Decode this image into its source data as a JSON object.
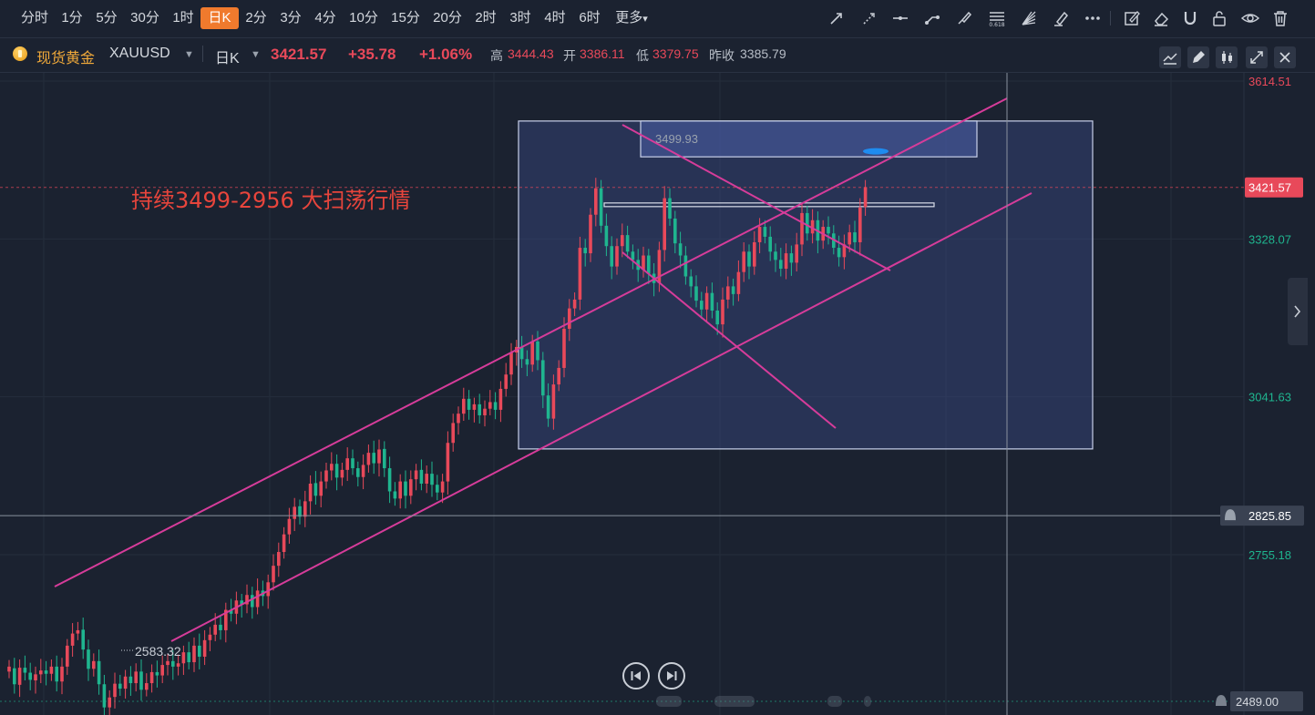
{
  "toolbar": {
    "timeframes": [
      "分时",
      "1分",
      "5分",
      "30分",
      "1时",
      "日K",
      "2分",
      "3分",
      "4分",
      "10分",
      "15分",
      "20分",
      "2时",
      "3时",
      "4时",
      "6时",
      "更多"
    ],
    "active_timeframe": "日K",
    "more_arrow": "▾",
    "tools": [
      "arrow-line-icon",
      "dashed-ray-icon",
      "horizontal-line-icon",
      "line-segment-icon",
      "brush-icon",
      "fibonacci-icon",
      "gann-fan-icon",
      "highlighter-icon",
      "more-dots-icon",
      "edit-note-icon",
      "eraser-icon",
      "magnet-icon",
      "lock-icon",
      "eye-icon",
      "trash-icon"
    ]
  },
  "symbol": {
    "name": "现货黄金",
    "code": "XAUUSD",
    "period": "日K",
    "price": "3421.57",
    "change": "+35.78",
    "change_pct": "+1.06%",
    "high_label": "高",
    "high": "3444.43",
    "open_label": "开",
    "open": "3386.11",
    "low_label": "低",
    "low": "3379.75",
    "prev_close_label": "昨收",
    "prev_close": "3385.79"
  },
  "info_buttons": [
    "indicator-icon",
    "pencil-icon",
    "candle-style-icon",
    "fullscreen-icon",
    "close-icon"
  ],
  "colors": {
    "up": "#e8495a",
    "down": "#1fb58f",
    "channel": "#d63c9a",
    "box_fill": "#3a4a82",
    "annotation": "#e8453c",
    "accent": "#f07a2d"
  },
  "chart_data": {
    "type": "candlestick",
    "title": "",
    "annotation": "持续3499-2956 大扫荡行情",
    "y_ticks": [
      "3614.51",
      "3328.07",
      "3041.63",
      "2755.18",
      "2489.00"
    ],
    "current_price_label": "3421.57",
    "crosshair_price_label": "2825.85",
    "range_high_label": "3499.93",
    "range_low_label": "2583.32",
    "ylim": [
      2489.0,
      3614.51
    ],
    "candles": [
      [
        2543,
        2552
      ],
      [
        2549,
        2520
      ],
      [
        2519,
        2550
      ],
      [
        2550,
        2541
      ],
      [
        2541,
        2528
      ],
      [
        2527,
        2538
      ],
      [
        2538,
        2545
      ],
      [
        2545,
        2539
      ],
      [
        2539,
        2552
      ],
      [
        2552,
        2525
      ],
      [
        2525,
        2552
      ],
      [
        2552,
        2590
      ],
      [
        2590,
        2612
      ],
      [
        2612,
        2618
      ],
      [
        2619,
        2583
      ],
      [
        2583,
        2548
      ],
      [
        2548,
        2562
      ],
      [
        2562,
        2520
      ],
      [
        2520,
        2478
      ],
      [
        2478,
        2496
      ],
      [
        2497,
        2521
      ],
      [
        2521,
        2512
      ],
      [
        2512,
        2534
      ],
      [
        2534,
        2522
      ],
      [
        2522,
        2543
      ],
      [
        2543,
        2510
      ],
      [
        2510,
        2522
      ],
      [
        2522,
        2542
      ],
      [
        2542,
        2536
      ],
      [
        2536,
        2555
      ],
      [
        2555,
        2562
      ],
      [
        2562,
        2552
      ],
      [
        2552,
        2558
      ],
      [
        2558,
        2578
      ],
      [
        2578,
        2560
      ],
      [
        2560,
        2590
      ],
      [
        2590,
        2570
      ],
      [
        2570,
        2600
      ],
      [
        2600,
        2610
      ],
      [
        2610,
        2628
      ],
      [
        2628,
        2618
      ],
      [
        2618,
        2655
      ],
      [
        2655,
        2648
      ],
      [
        2648,
        2672
      ],
      [
        2672,
        2665
      ],
      [
        2665,
        2682
      ],
      [
        2682,
        2660
      ],
      [
        2660,
        2690
      ],
      [
        2690,
        2680
      ],
      [
        2680,
        2705
      ],
      [
        2705,
        2735
      ],
      [
        2735,
        2760
      ],
      [
        2760,
        2792
      ],
      [
        2792,
        2820
      ],
      [
        2820,
        2842
      ],
      [
        2843,
        2824
      ],
      [
        2824,
        2852
      ],
      [
        2852,
        2884
      ],
      [
        2885,
        2862
      ],
      [
        2862,
        2888
      ],
      [
        2888,
        2908
      ],
      [
        2908,
        2920
      ],
      [
        2920,
        2895
      ],
      [
        2895,
        2909
      ],
      [
        2909,
        2930
      ],
      [
        2930,
        2912
      ],
      [
        2912,
        2896
      ],
      [
        2896,
        2918
      ],
      [
        2918,
        2940
      ],
      [
        2940,
        2921
      ],
      [
        2921,
        2946
      ],
      [
        2947,
        2912
      ],
      [
        2912,
        2870
      ],
      [
        2870,
        2857
      ],
      [
        2857,
        2888
      ],
      [
        2888,
        2862
      ],
      [
        2862,
        2892
      ],
      [
        2892,
        2908
      ],
      [
        2909,
        2884
      ],
      [
        2884,
        2902
      ],
      [
        2902,
        2882
      ],
      [
        2882,
        2868
      ],
      [
        2868,
        2888
      ],
      [
        2888,
        2958
      ],
      [
        2958,
        2994
      ],
      [
        2994,
        3011
      ],
      [
        3011,
        3038
      ],
      [
        3038,
        3018
      ],
      [
        3018,
        3028
      ],
      [
        3028,
        3008
      ],
      [
        3008,
        3020
      ],
      [
        3020,
        3032
      ],
      [
        3032,
        3018
      ],
      [
        3018,
        3056
      ],
      [
        3056,
        3082
      ],
      [
        3082,
        3122
      ],
      [
        3122,
        3132
      ],
      [
        3132,
        3110
      ],
      [
        3110,
        3100
      ],
      [
        3100,
        3142
      ],
      [
        3142,
        3108
      ],
      [
        3108,
        3044
      ],
      [
        3044,
        3002
      ],
      [
        3002,
        3064
      ],
      [
        3064,
        3094
      ],
      [
        3094,
        3165
      ],
      [
        3165,
        3202
      ],
      [
        3202,
        3218
      ],
      [
        3218,
        3312
      ],
      [
        3312,
        3302
      ],
      [
        3302,
        3372
      ],
      [
        3372,
        3420
      ],
      [
        3420,
        3352
      ],
      [
        3352,
        3315
      ],
      [
        3315,
        3278
      ],
      [
        3278,
        3315
      ],
      [
        3315,
        3335
      ],
      [
        3335,
        3305
      ],
      [
        3305,
        3290
      ],
      [
        3290,
        3272
      ],
      [
        3272,
        3298
      ],
      [
        3298,
        3265
      ],
      [
        3265,
        3248
      ],
      [
        3248,
        3308
      ],
      [
        3308,
        3402
      ],
      [
        3402,
        3365
      ],
      [
        3365,
        3320
      ],
      [
        3320,
        3298
      ],
      [
        3298,
        3260
      ],
      [
        3260,
        3242
      ],
      [
        3242,
        3216
      ],
      [
        3216,
        3200
      ],
      [
        3200,
        3230
      ],
      [
        3230,
        3198
      ],
      [
        3198,
        3173
      ],
      [
        3173,
        3218
      ],
      [
        3218,
        3242
      ],
      [
        3242,
        3228
      ],
      [
        3228,
        3268
      ],
      [
        3268,
        3305
      ],
      [
        3305,
        3278
      ],
      [
        3278,
        3322
      ],
      [
        3322,
        3350
      ],
      [
        3350,
        3332
      ],
      [
        3332,
        3305
      ],
      [
        3305,
        3290
      ],
      [
        3290,
        3274
      ],
      [
        3274,
        3302
      ],
      [
        3302,
        3285
      ],
      [
        3285,
        3318
      ],
      [
        3318,
        3375
      ],
      [
        3375,
        3338
      ],
      [
        3338,
        3362
      ],
      [
        3362,
        3325
      ],
      [
        3325,
        3350
      ],
      [
        3350,
        3338
      ],
      [
        3338,
        3312
      ],
      [
        3312,
        3295
      ],
      [
        3295,
        3318
      ],
      [
        3318,
        3340
      ],
      [
        3340,
        3322
      ],
      [
        3322,
        3385
      ],
      [
        3386,
        3422
      ]
    ]
  }
}
